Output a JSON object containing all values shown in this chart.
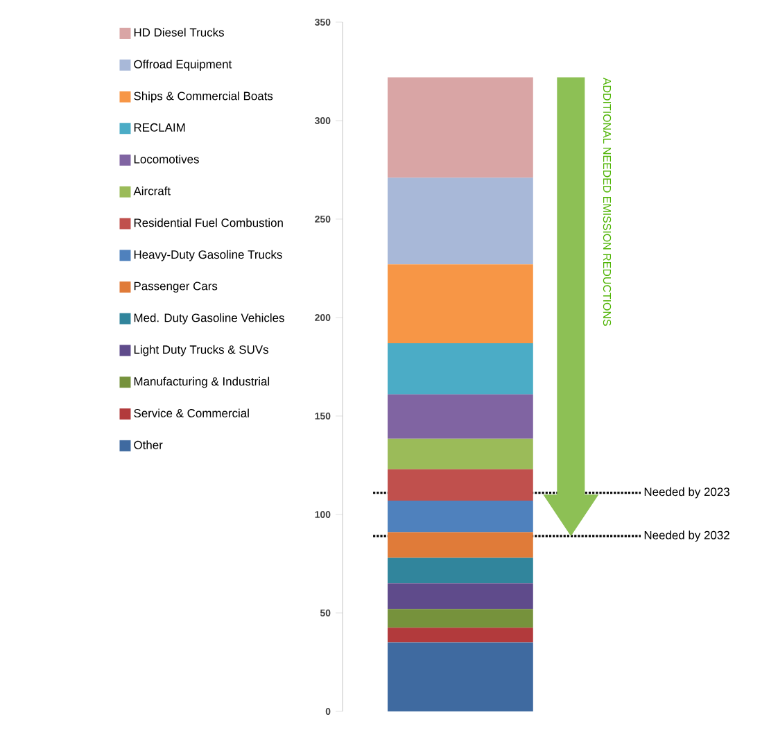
{
  "chart_data": {
    "type": "bar",
    "stacked": true,
    "categories": [
      null
    ],
    "series": [
      {
        "name": "Other",
        "color": "#3f6aa0",
        "values": [
          35
        ]
      },
      {
        "name": "Service & Commercial",
        "color": "#b23a3c",
        "values": [
          7.5
        ]
      },
      {
        "name": "Manufacturing & Industrial",
        "color": "#76923c",
        "values": [
          9.5
        ]
      },
      {
        "name": "Light Duty Trucks & SUVs",
        "color": "#5f4b8b",
        "values": [
          13
        ]
      },
      {
        "name": "Med. Duty Gasoline Vehicles",
        "color": "#31859c",
        "values": [
          13
        ]
      },
      {
        "name": "Passenger Cars",
        "color": "#e07b39",
        "values": [
          13
        ]
      },
      {
        "name": "Heavy-Duty Gasoline Trucks",
        "color": "#4f81bd",
        "values": [
          16
        ]
      },
      {
        "name": "Residential Fuel Combustion",
        "color": "#c0504d",
        "values": [
          16
        ]
      },
      {
        "name": "Aircraft",
        "color": "#9bbb59",
        "values": [
          15.5
        ]
      },
      {
        "name": "Locomotives",
        "color": "#8064a2",
        "values": [
          22.5
        ]
      },
      {
        "name": "RECLAIM",
        "color": "#4bacc6",
        "values": [
          26
        ]
      },
      {
        "name": "Ships & Commercial Boats",
        "color": "#f79646",
        "values": [
          40
        ]
      },
      {
        "name": "Offroad Equipment",
        "color": "#a8b8d8",
        "values": [
          44
        ]
      },
      {
        "name": "HD Diesel Trucks",
        "color": "#d9a5a5",
        "values": [
          51
        ]
      }
    ],
    "ylim": [
      0,
      350
    ],
    "yticks": [
      0,
      50,
      100,
      150,
      200,
      250,
      300,
      350
    ],
    "ref_lines": [
      {
        "axis": "y",
        "value": 111,
        "label": "Needed by 2023",
        "line_style": "dotted"
      },
      {
        "axis": "y",
        "value": 89,
        "label": "Needed by 2032",
        "line_style": "dotted"
      }
    ],
    "annotations": [
      "ADDITIONAL NEEDED EMISSION REDUCTIONS"
    ],
    "legend": "left"
  }
}
